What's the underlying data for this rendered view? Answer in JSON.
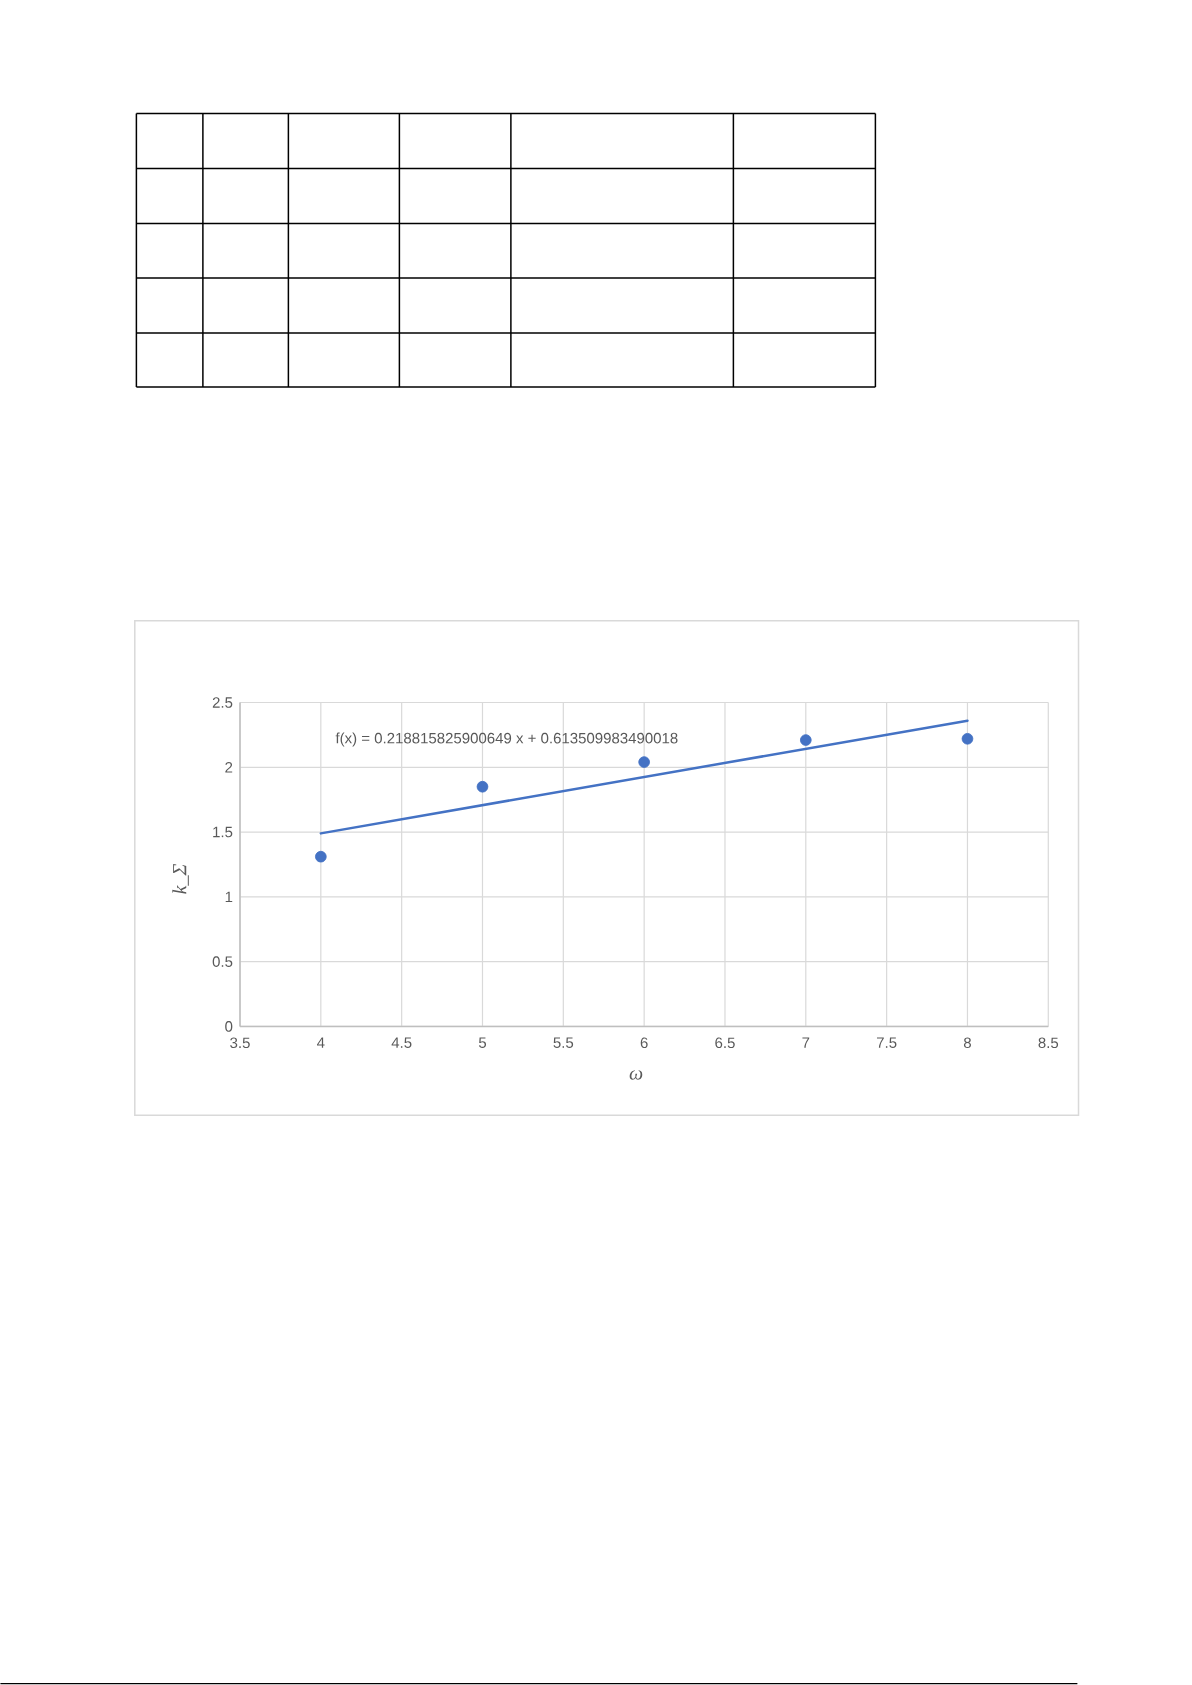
{
  "chart_data": {
    "type": "scatter",
    "xlabel": "ω",
    "ylabel": "k_Σ",
    "marker": "circle",
    "series": [
      {
        "color": "#4472c4",
        "x": [
          4,
          5,
          6,
          7,
          8
        ],
        "values": [
          1.31,
          1.85,
          2.04,
          2.21,
          2.22
        ]
      },
      {
        "type": "line",
        "color": "#4472c4",
        "marker": "none",
        "x": [
          4,
          8
        ],
        "values": [
          1.49,
          2.36
        ]
      }
    ],
    "xlim": [
      3.5,
      8.5
    ],
    "ylim": [
      0,
      2.5
    ],
    "xticks": [
      3.5,
      4,
      4.5,
      5,
      5.5,
      6,
      6.5,
      7,
      7.5,
      8,
      8.5
    ],
    "yticks": [
      0,
      0.5,
      1,
      1.5,
      2,
      2.5
    ],
    "grid": true,
    "annotations": [
      "f(x) = 0.218815825900649 x + 0.613509983490018"
    ]
  }
}
